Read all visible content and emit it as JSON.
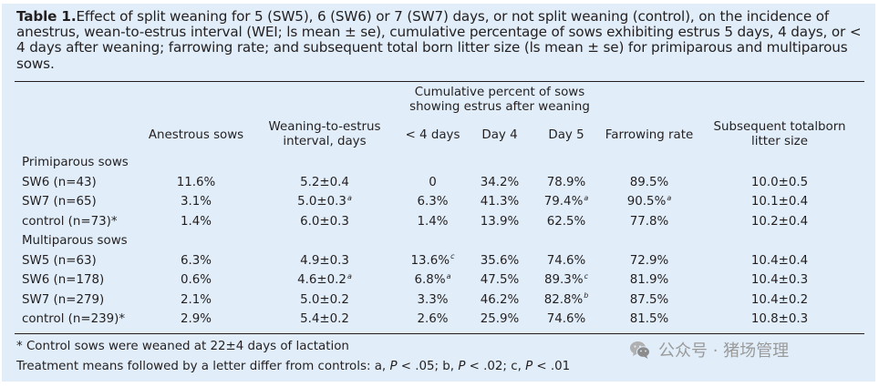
{
  "caption": {
    "label": "Table 1.",
    "text": "Effect of split weaning for 5 (SW5), 6 (SW6) or 7 (SW7) days, or not split weaning (control), on the incidence of anestrus, wean-to-estrus interval (WEI; ls mean ± se), cumulative percentage of sows exhibiting estrus 5 days, 4 days, or < 4 days after weaning; farrowing rate; and subsequent total born litter size (ls mean ± se) for primiparous and multiparous sows."
  },
  "header": {
    "group": [
      "Cumulative percent of sows",
      "showing estrus after weaning"
    ],
    "anestrous": "Anestrous sows",
    "wei": [
      "Weaning-to-estrus",
      "interval, days"
    ],
    "lt4": "< 4 days",
    "day4": "Day 4",
    "day5": "Day 5",
    "farrowing": "Farrowing rate",
    "litter": [
      "Subsequent totalborn",
      "litter size"
    ]
  },
  "sections": [
    {
      "title": "Primiparous sows",
      "rows": [
        {
          "label": "SW6 (n=43)",
          "anestrous": "11.6%",
          "wei": "5.2±0.4",
          "wei_sup": "",
          "lt4": "0",
          "lt4_sup": "",
          "day4": "34.2%",
          "day5": "78.9%",
          "day5_sup": "",
          "farrowing": "89.5%",
          "farrowing_sup": "",
          "litter": "10.0±0.5"
        },
        {
          "label": "SW7 (n=65)",
          "anestrous": "3.1%",
          "wei": "5.0±0.3",
          "wei_sup": "a",
          "lt4": "6.3%",
          "lt4_sup": "",
          "day4": "41.3%",
          "day5": "79.4%",
          "day5_sup": "a",
          "farrowing": "90.5%",
          "farrowing_sup": "a",
          "litter": "10.1±0.4"
        },
        {
          "label": "control (n=73)*",
          "anestrous": "1.4%",
          "wei": "6.0±0.3",
          "wei_sup": "",
          "lt4": "1.4%",
          "lt4_sup": "",
          "day4": "13.9%",
          "day5": "62.5%",
          "day5_sup": "",
          "farrowing": "77.8%",
          "farrowing_sup": "",
          "litter": "10.2±0.4"
        }
      ]
    },
    {
      "title": "Multiparous sows",
      "rows": [
        {
          "label": "SW5 (n=63)",
          "anestrous": "6.3%",
          "wei": "4.9±0.3",
          "wei_sup": "",
          "lt4": "13.6%",
          "lt4_sup": "c",
          "day4": "35.6%",
          "day5": "74.6%",
          "day5_sup": "",
          "farrowing": "72.9%",
          "farrowing_sup": "",
          "litter": "10.4±0.4"
        },
        {
          "label": "SW6 (n=178)",
          "anestrous": "0.6%",
          "wei": "4.6±0.2",
          "wei_sup": "a",
          "lt4": "6.8%",
          "lt4_sup": "a",
          "day4": "47.5%",
          "day5": "89.3%",
          "day5_sup": "c",
          "farrowing": "81.9%",
          "farrowing_sup": "",
          "litter": "10.4±0.3"
        },
        {
          "label": "SW7 (n=279)",
          "anestrous": "2.1%",
          "wei": "5.0±0.2",
          "wei_sup": "",
          "lt4": "3.3%",
          "lt4_sup": "",
          "day4": "46.2%",
          "day5": "82.8%",
          "day5_sup": "b",
          "farrowing": "87.5%",
          "farrowing_sup": "",
          "litter": "10.4±0.2"
        },
        {
          "label": "control (n=239)*",
          "anestrous": "2.9%",
          "wei": "5.4±0.2",
          "wei_sup": "",
          "lt4": "2.6%",
          "lt4_sup": "",
          "day4": "25.9%",
          "day5": "74.6%",
          "day5_sup": "",
          "farrowing": "81.5%",
          "farrowing_sup": "",
          "litter": "10.8±0.3"
        }
      ]
    }
  ],
  "footnotes": {
    "control": "* Control sows were weaned at 22±4 days of lactation",
    "treatment": {
      "t1": "Treatment means followed by a letter differ from controls: a, ",
      "p1": "P",
      "t2": " < .05;  b, ",
      "p2": "P",
      "t3": " < .02;  c, ",
      "p3": "P",
      "t4": " < .01"
    }
  },
  "watermark": {
    "icon": "wechat-icon",
    "text": "公众号 · 猪场管理"
  },
  "colors": {
    "panel": "#e1eef9",
    "text": "#231f20",
    "watermark": "#9a9a9a"
  }
}
